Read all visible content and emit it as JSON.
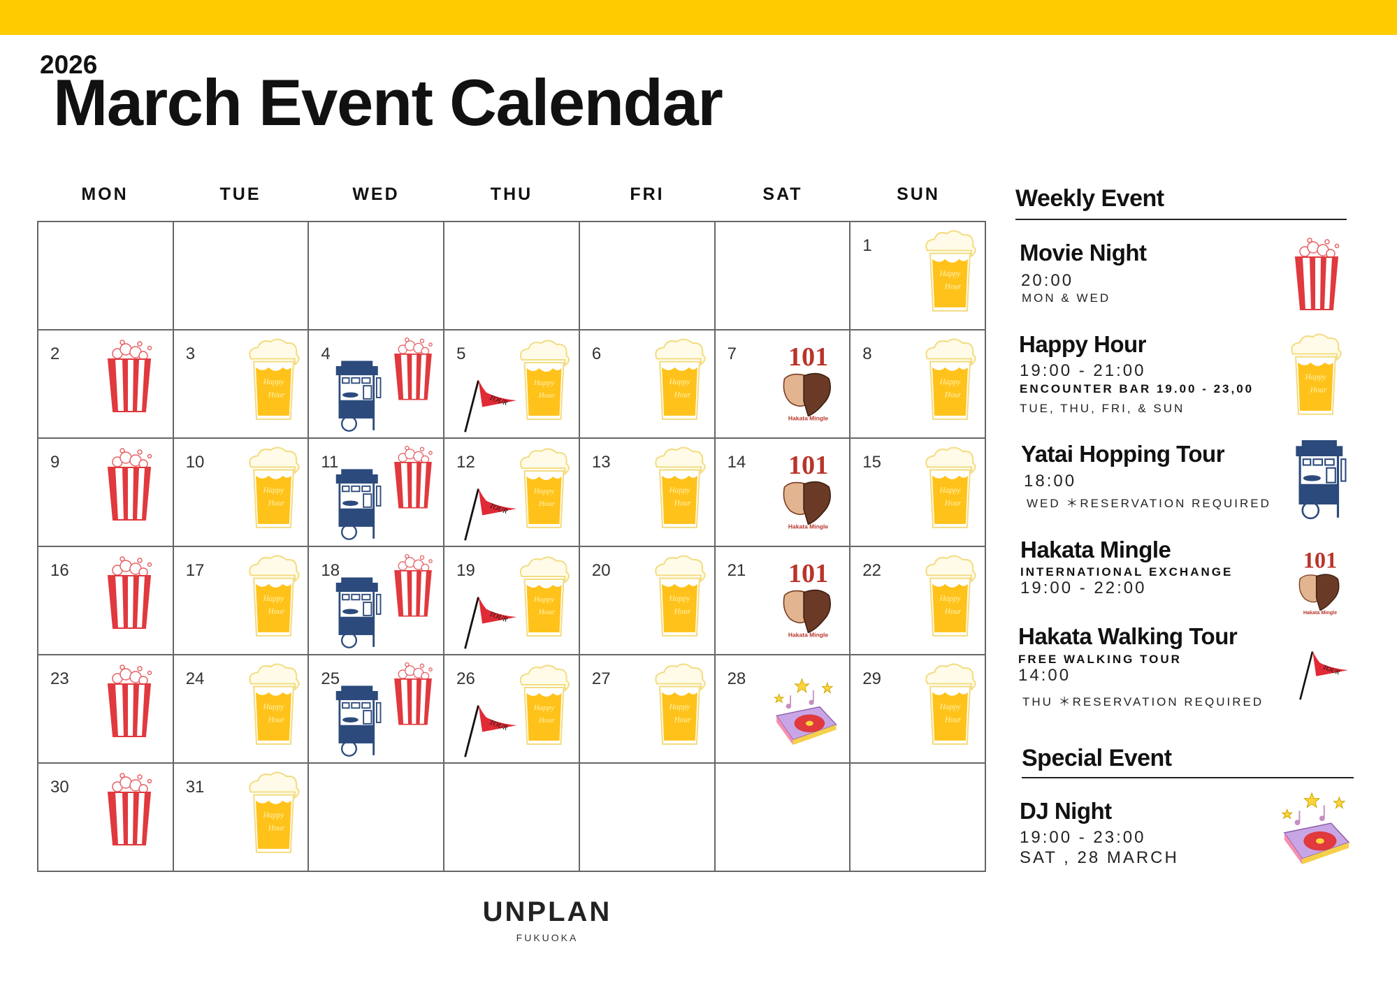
{
  "header": {
    "year": "2026",
    "title": "March Event Calendar",
    "accent_color": "#ffcc00"
  },
  "calendar": {
    "weekdays": [
      "MON",
      "TUE",
      "WED",
      "THU",
      "FRI",
      "SAT",
      "SUN"
    ],
    "weeks": [
      [
        null,
        null,
        null,
        null,
        null,
        null,
        {
          "day": "1",
          "icons": [
            "happy-hour"
          ]
        }
      ],
      [
        {
          "day": "2",
          "icons": [
            "movie-night"
          ]
        },
        {
          "day": "3",
          "icons": [
            "happy-hour"
          ]
        },
        {
          "day": "4",
          "icons": [
            "yatai",
            "movie-night"
          ]
        },
        {
          "day": "5",
          "icons": [
            "tour",
            "happy-hour"
          ]
        },
        {
          "day": "6",
          "icons": [
            "happy-hour"
          ]
        },
        {
          "day": "7",
          "icons": [
            "hakata-mingle"
          ]
        },
        {
          "day": "8",
          "icons": [
            "happy-hour"
          ]
        }
      ],
      [
        {
          "day": "9",
          "icons": [
            "movie-night"
          ]
        },
        {
          "day": "10",
          "icons": [
            "happy-hour"
          ]
        },
        {
          "day": "11",
          "icons": [
            "yatai",
            "movie-night"
          ]
        },
        {
          "day": "12",
          "icons": [
            "tour",
            "happy-hour"
          ]
        },
        {
          "day": "13",
          "icons": [
            "happy-hour"
          ]
        },
        {
          "day": "14",
          "icons": [
            "hakata-mingle"
          ]
        },
        {
          "day": "15",
          "icons": [
            "happy-hour"
          ]
        }
      ],
      [
        {
          "day": "16",
          "icons": [
            "movie-night"
          ]
        },
        {
          "day": "17",
          "icons": [
            "happy-hour"
          ]
        },
        {
          "day": "18",
          "icons": [
            "yatai",
            "movie-night"
          ]
        },
        {
          "day": "19",
          "icons": [
            "tour",
            "happy-hour"
          ]
        },
        {
          "day": "20",
          "icons": [
            "happy-hour"
          ]
        },
        {
          "day": "21",
          "icons": [
            "hakata-mingle"
          ]
        },
        {
          "day": "22",
          "icons": [
            "happy-hour"
          ]
        }
      ],
      [
        {
          "day": "23",
          "icons": [
            "movie-night"
          ]
        },
        {
          "day": "24",
          "icons": [
            "happy-hour"
          ]
        },
        {
          "day": "25",
          "icons": [
            "yatai",
            "movie-night"
          ]
        },
        {
          "day": "26",
          "icons": [
            "tour",
            "happy-hour"
          ]
        },
        {
          "day": "27",
          "icons": [
            "happy-hour"
          ]
        },
        {
          "day": "28",
          "icons": [
            "dj-night"
          ]
        },
        {
          "day": "29",
          "icons": [
            "happy-hour"
          ]
        }
      ],
      [
        {
          "day": "30",
          "icons": [
            "movie-night"
          ]
        },
        {
          "day": "31",
          "icons": [
            "happy-hour"
          ]
        },
        null,
        null,
        null,
        null,
        null
      ]
    ]
  },
  "icon_text": {
    "happy_hour": [
      "Happy",
      "Hour"
    ],
    "tour": "TOUR",
    "mingle_number": "101",
    "mingle_caption": "Hakata Mingle"
  },
  "colors": {
    "popcorn_red": "#e0393e",
    "beer_yellow": "#ffc21a",
    "yatai_navy": "#2c4a7c",
    "flag_red": "#e02a35",
    "mingle_red": "#b8352a"
  },
  "weekly": {
    "heading": "Weekly Event",
    "events": [
      {
        "title": "Movie Night",
        "time": "20:00",
        "days": "MON & WED",
        "icon": "movie-night"
      },
      {
        "title": "Happy Hour",
        "time": "19:00 - 21:00",
        "note": "ENCOUNTER BAR 19.00 - 23,00",
        "days": "TUE, THU, FRI, & SUN",
        "icon": "happy-hour"
      },
      {
        "title": "Yatai Hopping Tour",
        "time": "18:00",
        "days": "WED ＊RESERVATION REQUIRED",
        "icon": "yatai"
      },
      {
        "title": "Hakata Mingle",
        "subtitle": "INTERNATIONAL EXCHANGE",
        "time": "19:00 - 22:00",
        "icon": "hakata-mingle"
      },
      {
        "title": "Hakata Walking Tour",
        "subtitle": "FREE WALKING TOUR",
        "time": "14:00",
        "days": "THU ＊RESERVATION REQUIRED",
        "icon": "tour"
      }
    ]
  },
  "special": {
    "heading": "Special Event",
    "events": [
      {
        "title": "DJ Night",
        "time": "19:00 - 23:00",
        "date": "SAT , 28 MARCH",
        "icon": "dj-night"
      }
    ]
  },
  "footer": {
    "brand": "UNPLAN",
    "city": "FUKUOKA"
  }
}
